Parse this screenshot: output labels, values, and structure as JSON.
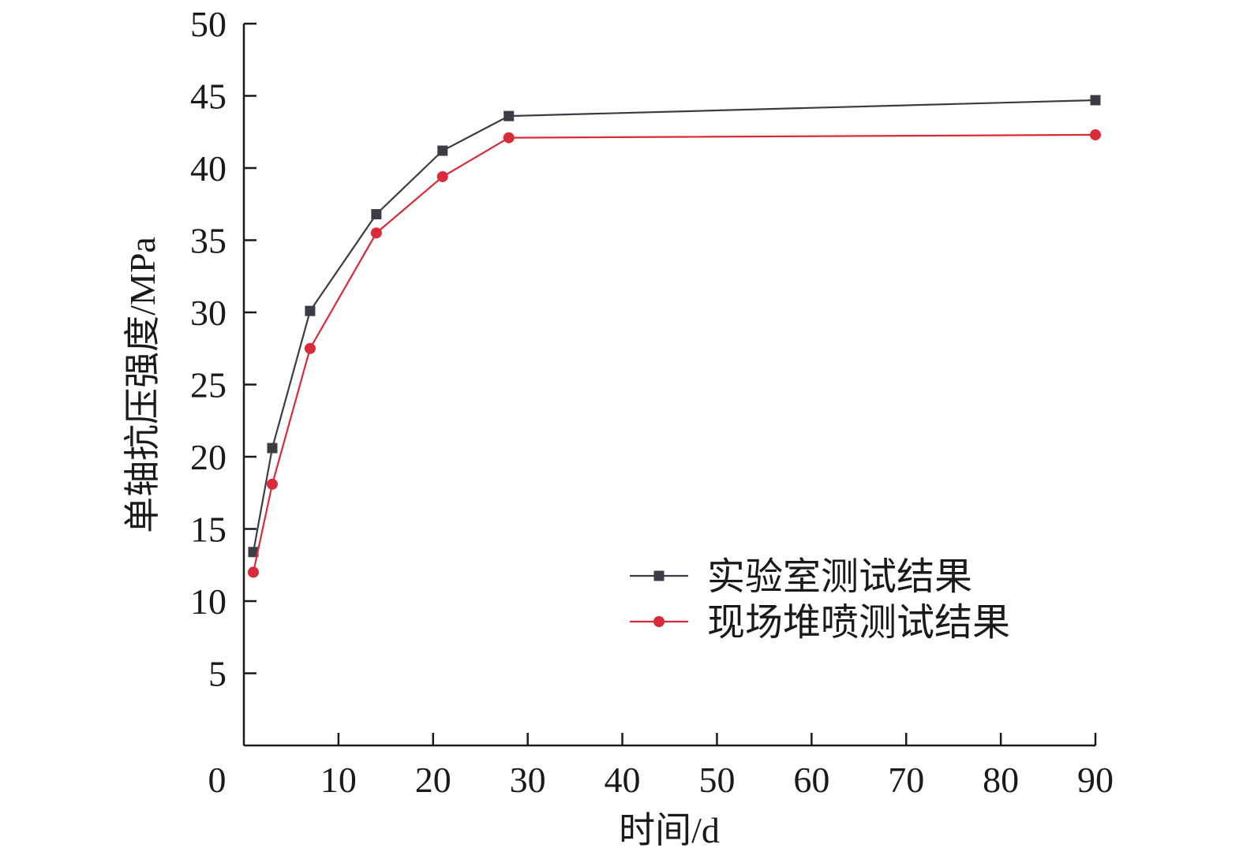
{
  "chart_data": {
    "type": "line",
    "xlabel": "时间/d",
    "ylabel": "单轴抗压强度/MPa",
    "xlim": [
      0,
      90
    ],
    "ylim": [
      0,
      50
    ],
    "origin_label": "0",
    "x_ticks": [
      {
        "value": 10,
        "label": "10"
      },
      {
        "value": 20,
        "label": "20"
      },
      {
        "value": 30,
        "label": "30"
      },
      {
        "value": 40,
        "label": "40"
      },
      {
        "value": 50,
        "label": "50"
      },
      {
        "value": 60,
        "label": "60"
      },
      {
        "value": 70,
        "label": "70"
      },
      {
        "value": 80,
        "label": "80"
      },
      {
        "value": 90,
        "label": "90"
      }
    ],
    "y_ticks": [
      {
        "value": 5,
        "label": "5"
      },
      {
        "value": 10,
        "label": "10"
      },
      {
        "value": 15,
        "label": "15"
      },
      {
        "value": 20,
        "label": "20"
      },
      {
        "value": 25,
        "label": "25"
      },
      {
        "value": 30,
        "label": "30"
      },
      {
        "value": 35,
        "label": "35"
      },
      {
        "value": 40,
        "label": "40"
      },
      {
        "value": 45,
        "label": "45"
      },
      {
        "value": 50,
        "label": "50"
      }
    ],
    "grid": false,
    "legend_position": "bottom-right",
    "series": [
      {
        "name": "实验室测试结果",
        "color": "#3a3d45",
        "marker": "square",
        "points": [
          {
            "x": 1,
            "y": 13.4
          },
          {
            "x": 3,
            "y": 20.6
          },
          {
            "x": 7,
            "y": 30.1
          },
          {
            "x": 14,
            "y": 36.8
          },
          {
            "x": 21,
            "y": 41.2
          },
          {
            "x": 28,
            "y": 43.6
          },
          {
            "x": 90,
            "y": 44.7
          }
        ]
      },
      {
        "name": "现场堆喷测试结果",
        "color": "#d92b3a",
        "marker": "circle",
        "points": [
          {
            "x": 1,
            "y": 12.0
          },
          {
            "x": 3,
            "y": 18.1
          },
          {
            "x": 7,
            "y": 27.5
          },
          {
            "x": 14,
            "y": 35.5
          },
          {
            "x": 21,
            "y": 39.4
          },
          {
            "x": 28,
            "y": 42.1
          },
          {
            "x": 90,
            "y": 42.3
          }
        ]
      }
    ]
  }
}
